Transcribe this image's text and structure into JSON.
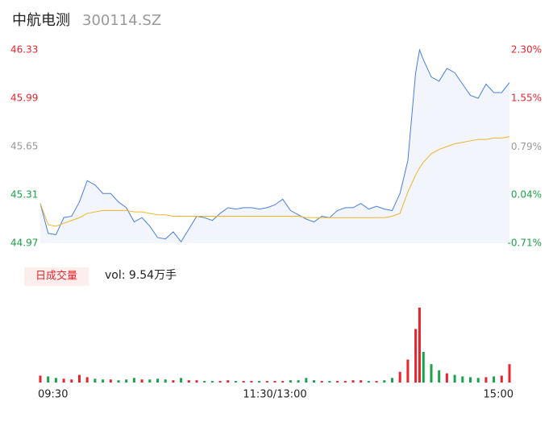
{
  "chart_data": [
    {
      "type": "line",
      "title": "中航电测",
      "subtitle": "300114.SZ",
      "x": [
        0,
        4,
        8,
        12,
        16,
        20,
        24,
        28,
        32,
        36,
        40,
        44,
        48,
        52,
        56,
        60,
        64,
        68,
        72,
        76,
        80,
        84,
        88,
        92,
        96,
        100,
        104,
        108,
        112,
        116,
        120,
        124,
        128,
        132,
        136,
        140,
        144,
        148,
        152,
        156,
        160,
        164,
        168,
        172,
        176,
        180,
        184,
        188,
        192,
        194,
        196,
        200,
        204,
        208,
        212,
        216,
        220,
        224,
        228,
        232,
        236,
        240
      ],
      "xlim": [
        0,
        240
      ],
      "xticks": [
        {
          "value": 0,
          "label": "09:30"
        },
        {
          "value": 120,
          "label": "11:30/13:00"
        },
        {
          "value": 240,
          "label": "15:00"
        }
      ],
      "ylim": [
        44.97,
        46.33
      ],
      "yticks": [
        46.33,
        45.99,
        45.65,
        45.31,
        44.97
      ],
      "y2lim": [
        -0.71,
        2.3
      ],
      "y2ticks": [
        {
          "value": 2.3,
          "label": "2.30%"
        },
        {
          "value": 1.55,
          "label": "1.55%"
        },
        {
          "value": 0.79,
          "label": "0.79%"
        },
        {
          "value": 0.04,
          "label": "0.04%"
        },
        {
          "value": -0.71,
          "label": "-0.71%"
        }
      ],
      "tick_colors": [
        "#e8242c",
        "#e8242c",
        "#999999",
        "#1aa34a",
        "#1aa34a"
      ],
      "area_color": "#f2f5fc",
      "series": [
        {
          "color": "#4a7fe0",
          "values": [
            45.25,
            45.04,
            45.03,
            45.15,
            45.16,
            45.26,
            45.41,
            45.38,
            45.32,
            45.32,
            45.26,
            45.22,
            45.12,
            45.15,
            45.09,
            45.01,
            45.0,
            45.05,
            44.98,
            45.07,
            45.16,
            45.15,
            45.13,
            45.18,
            45.22,
            45.21,
            45.22,
            45.22,
            45.21,
            45.22,
            45.24,
            45.28,
            45.2,
            45.17,
            45.14,
            45.12,
            45.16,
            45.15,
            45.2,
            45.22,
            45.22,
            45.25,
            45.21,
            45.23,
            45.21,
            45.2,
            45.32,
            45.55,
            46.17,
            46.33,
            46.26,
            46.14,
            46.11,
            46.2,
            46.17,
            46.09,
            46.01,
            45.99,
            46.09,
            46.03,
            46.03,
            46.1
          ]
        },
        {
          "color": "#f0b429",
          "values": [
            45.25,
            45.1,
            45.09,
            45.11,
            45.13,
            45.15,
            45.18,
            45.19,
            45.2,
            45.2,
            45.2,
            45.2,
            45.19,
            45.19,
            45.18,
            45.17,
            45.17,
            45.16,
            45.16,
            45.16,
            45.16,
            45.16,
            45.16,
            45.16,
            45.16,
            45.16,
            45.16,
            45.16,
            45.16,
            45.16,
            45.16,
            45.16,
            45.16,
            45.16,
            45.15,
            45.15,
            45.15,
            45.15,
            45.15,
            45.15,
            45.15,
            45.15,
            45.15,
            45.15,
            45.15,
            45.16,
            45.18,
            45.33,
            45.45,
            45.5,
            45.54,
            45.6,
            45.63,
            45.65,
            45.67,
            45.68,
            45.69,
            45.7,
            45.7,
            45.71,
            45.71,
            45.72
          ]
        }
      ]
    },
    {
      "type": "bar",
      "title": "日成交量",
      "subtitle": "vol: 9.54万手",
      "up_color": "#e8242c",
      "down_color": "#1aa34a",
      "ylim": [
        0,
        5000
      ],
      "values": [
        450,
        400,
        300,
        250,
        200,
        500,
        350,
        250,
        200,
        200,
        150,
        200,
        300,
        200,
        200,
        250,
        200,
        150,
        300,
        150,
        150,
        100,
        100,
        100,
        150,
        100,
        100,
        100,
        100,
        100,
        100,
        100,
        150,
        150,
        300,
        150,
        100,
        100,
        100,
        100,
        150,
        150,
        100,
        100,
        150,
        300,
        700,
        1500,
        3500,
        4900,
        2000,
        1200,
        800,
        600,
        500,
        400,
        350,
        300,
        350,
        400,
        450,
        1200
      ]
    }
  ]
}
